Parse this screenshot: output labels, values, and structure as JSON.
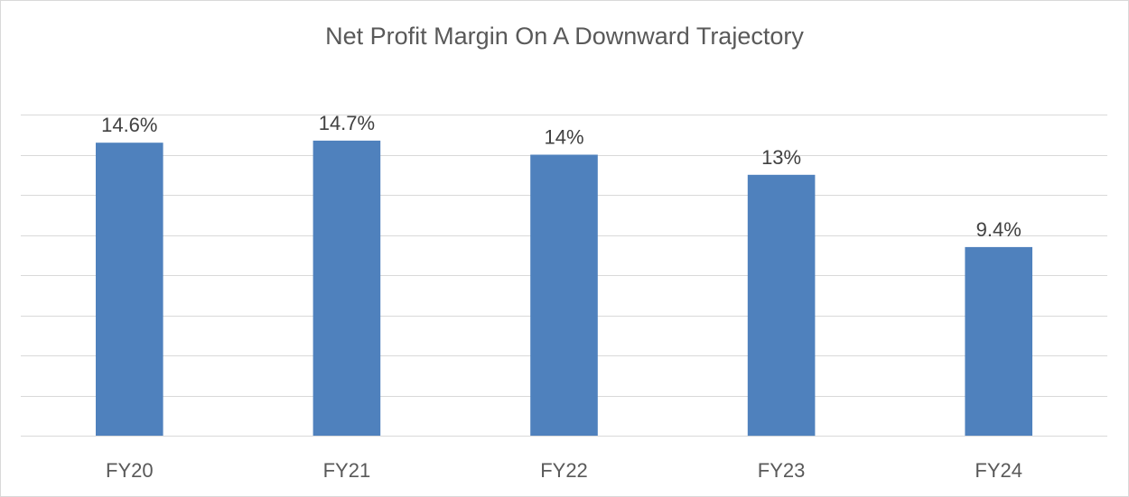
{
  "chart_data": {
    "type": "bar",
    "title": "Net Profit Margin On A Downward Trajectory",
    "xlabel": "",
    "ylabel": "",
    "categories": [
      "FY20",
      "FY21",
      "FY22",
      "FY23",
      "FY24"
    ],
    "values": [
      14.6,
      14.7,
      14,
      13,
      9.4
    ],
    "data_labels": [
      "14.6%",
      "14.7%",
      "14%",
      "13%",
      "9.4%"
    ],
    "ylim": [
      0,
      16
    ],
    "y_gridline_step": 2,
    "grid": true,
    "legend": "none",
    "bar_color": "#4f81bd"
  }
}
